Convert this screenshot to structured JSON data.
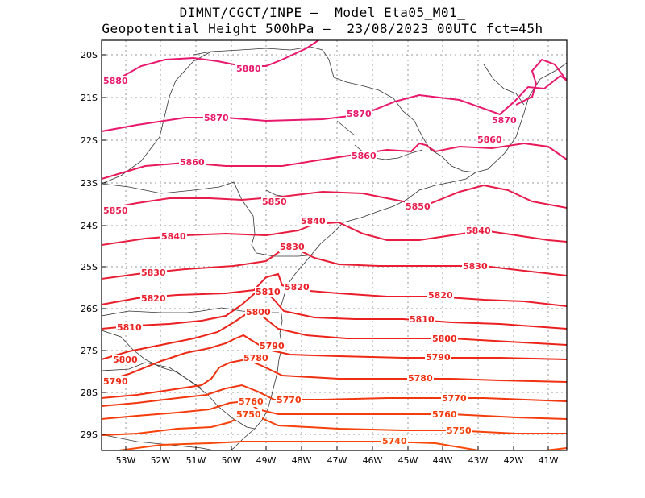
{
  "title_line1": "DIMNT/CGCT/INPE –  Model Eta05_M01_",
  "title_line2": "Geopotential Height 500hPa –  23/08/2023 00UTC fct=45h",
  "lat_labels": [
    "20S",
    "21S",
    "22S",
    "23S",
    "24S",
    "25S",
    "26S",
    "27S",
    "28S",
    "29S"
  ],
  "lon_labels": [
    "53W",
    "52W",
    "51W",
    "50W",
    "49W",
    "48W",
    "47W",
    "46W",
    "45W",
    "44W",
    "43W",
    "42W",
    "41W"
  ],
  "contour_labels": [
    {
      "text": "5880",
      "color": "#e8186e"
    },
    {
      "text": "5880",
      "color": "#e8186e"
    },
    {
      "text": "5870",
      "color": "#e8186e"
    },
    {
      "text": "5870",
      "color": "#e8186e"
    },
    {
      "text": "5870",
      "color": "#e8186e"
    },
    {
      "text": "5860",
      "color": "#e81a5c"
    },
    {
      "text": "5860",
      "color": "#e81a5c"
    },
    {
      "text": "5860",
      "color": "#e81a5c"
    },
    {
      "text": "5850",
      "color": "#e81c4c"
    },
    {
      "text": "5850",
      "color": "#e81c4c"
    },
    {
      "text": "5850",
      "color": "#e81c4c"
    },
    {
      "text": "5840",
      "color": "#e81c40"
    },
    {
      "text": "5840",
      "color": "#e81c40"
    },
    {
      "text": "5840",
      "color": "#e81c40"
    },
    {
      "text": "5830",
      "color": "#e81e34"
    },
    {
      "text": "5830",
      "color": "#e81e34"
    },
    {
      "text": "5830",
      "color": "#e81e34"
    },
    {
      "text": "5820",
      "color": "#ea1e2a"
    },
    {
      "text": "5820",
      "color": "#ea1e2a"
    },
    {
      "text": "5820",
      "color": "#ea1e2a"
    },
    {
      "text": "5810",
      "color": "#ea2020"
    },
    {
      "text": "5810",
      "color": "#ea2020"
    },
    {
      "text": "5810",
      "color": "#ea2020"
    },
    {
      "text": "5800",
      "color": "#ec2418"
    },
    {
      "text": "5800",
      "color": "#ec2418"
    },
    {
      "text": "5800",
      "color": "#ec2418"
    },
    {
      "text": "5790",
      "color": "#ee2a14"
    },
    {
      "text": "5790",
      "color": "#ee2a14"
    },
    {
      "text": "5790",
      "color": "#ee2a14"
    },
    {
      "text": "5780",
      "color": "#f03010"
    },
    {
      "text": "5780",
      "color": "#f03010"
    },
    {
      "text": "5770",
      "color": "#f2360e"
    },
    {
      "text": "5770",
      "color": "#f2360e"
    },
    {
      "text": "5760",
      "color": "#f43c0c"
    },
    {
      "text": "5760",
      "color": "#f43c0c"
    },
    {
      "text": "5750",
      "color": "#f6420a"
    },
    {
      "text": "5750",
      "color": "#f6420a"
    },
    {
      "text": "5740",
      "color": "#f84808"
    }
  ]
}
